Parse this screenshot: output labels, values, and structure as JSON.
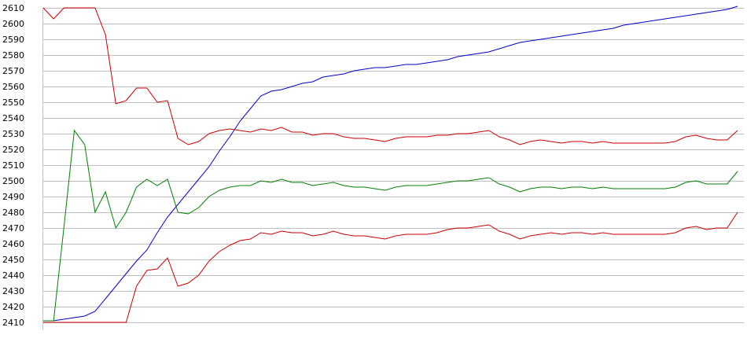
{
  "chart_data": {
    "type": "line",
    "title": "",
    "xlabel": "",
    "ylabel": "",
    "ylim": [
      2410,
      2610
    ],
    "yticks": [
      2610,
      2600,
      2590,
      2580,
      2570,
      2560,
      2550,
      2540,
      2530,
      2520,
      2510,
      2500,
      2490,
      2480,
      2470,
      2460,
      2450,
      2440,
      2430,
      2420,
      2410
    ],
    "grid": true,
    "legend": "none",
    "x": [
      0,
      1,
      2,
      3,
      4,
      5,
      6,
      7,
      8,
      9,
      10,
      11,
      12,
      13,
      14,
      15,
      16,
      17,
      18,
      19,
      20,
      21,
      22,
      23,
      24,
      25,
      26,
      27,
      28,
      29,
      30,
      31,
      32,
      33,
      34,
      35,
      36,
      37,
      38,
      39,
      40,
      41,
      42,
      43,
      44,
      45,
      46,
      47,
      48,
      49,
      50,
      51,
      52,
      53,
      54,
      55,
      56,
      57,
      58,
      59,
      60,
      61,
      62,
      63,
      64,
      65,
      66,
      67
    ],
    "series": [
      {
        "color": "#0000cc",
        "values": [
          2411,
          2411,
          2412,
          2413,
          2414,
          2417,
          2425,
          2433,
          2441,
          2449,
          2456,
          2467,
          2477,
          2485,
          2493,
          2501,
          2509,
          2519,
          2528,
          2538,
          2546,
          2554,
          2557,
          2558,
          2560,
          2562,
          2563,
          2566,
          2567,
          2568,
          2570,
          2571,
          2572,
          2572,
          2573,
          2574,
          2574,
          2575,
          2576,
          2577,
          2579,
          2580,
          2581,
          2582,
          2584,
          2586,
          2588,
          2589,
          2590,
          2591,
          2592,
          2593,
          2594,
          2595,
          2596,
          2597,
          2599,
          2600,
          2601,
          2602,
          2603,
          2604,
          2605,
          2606,
          2607,
          2608,
          2609,
          2611
        ]
      },
      {
        "color": "#cc0000",
        "values": [
          2610,
          2603,
          2610,
          2610,
          2610,
          2610,
          2593,
          2549,
          2551,
          2559,
          2559,
          2550,
          2551,
          2527,
          2523,
          2525,
          2530,
          2532,
          2533,
          2532,
          2531,
          2533,
          2532,
          2534,
          2531,
          2531,
          2529,
          2530,
          2530,
          2528,
          2527,
          2527,
          2526,
          2525,
          2527,
          2528,
          2528,
          2528,
          2529,
          2529,
          2530,
          2530,
          2531,
          2532,
          2528,
          2526,
          2523,
          2525,
          2526,
          2525,
          2524,
          2525,
          2525,
          2524,
          2525,
          2524,
          2524,
          2524,
          2524,
          2524,
          2524,
          2525,
          2528,
          2529,
          2527,
          2526,
          2526,
          2532
        ]
      },
      {
        "color": "#008000",
        "values": [
          2411,
          2411,
          2471,
          2532,
          2523,
          2480,
          2493,
          2470,
          2480,
          2496,
          2501,
          2497,
          2501,
          2480,
          2479,
          2483,
          2490,
          2494,
          2496,
          2497,
          2497,
          2500,
          2499,
          2501,
          2499,
          2499,
          2497,
          2498,
          2499,
          2497,
          2496,
          2496,
          2495,
          2494,
          2496,
          2497,
          2497,
          2497,
          2498,
          2499,
          2500,
          2500,
          2501,
          2502,
          2498,
          2496,
          2493,
          2495,
          2496,
          2496,
          2495,
          2496,
          2496,
          2495,
          2496,
          2495,
          2495,
          2495,
          2495,
          2495,
          2495,
          2496,
          2499,
          2500,
          2498,
          2498,
          2498,
          2506
        ]
      },
      {
        "color": "#cc0000",
        "values": [
          2410,
          2410,
          2410,
          2410,
          2410,
          2410,
          2410,
          2410,
          2410,
          2433,
          2443,
          2444,
          2451,
          2433,
          2435,
          2440,
          2449,
          2455,
          2459,
          2462,
          2463,
          2467,
          2466,
          2468,
          2467,
          2467,
          2465,
          2466,
          2468,
          2466,
          2465,
          2465,
          2464,
          2463,
          2465,
          2466,
          2466,
          2466,
          2467,
          2469,
          2470,
          2470,
          2471,
          2472,
          2468,
          2466,
          2463,
          2465,
          2466,
          2467,
          2466,
          2467,
          2467,
          2466,
          2467,
          2466,
          2466,
          2466,
          2466,
          2466,
          2466,
          2467,
          2470,
          2471,
          2469,
          2470,
          2470,
          2480
        ]
      }
    ]
  }
}
